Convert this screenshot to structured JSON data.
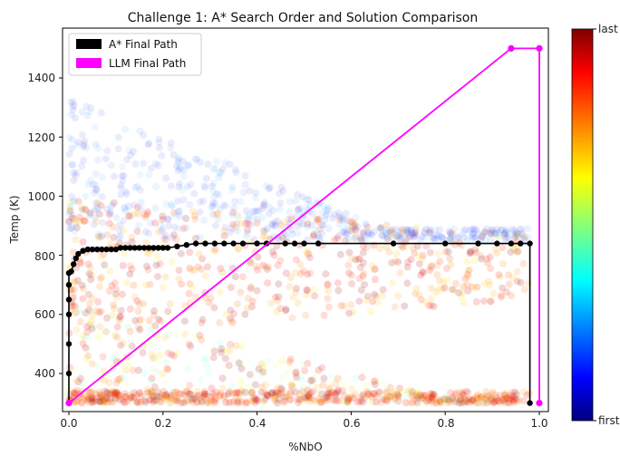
{
  "chart_data": {
    "type": "scatter",
    "title": "Challenge 1: A* Search Order and Solution Comparison",
    "xlabel": "%NbO",
    "ylabel": "Temp (K)",
    "xlim": [
      -0.01,
      1.01
    ],
    "ylim": [
      235,
      1570
    ],
    "xticks": [
      "0.0",
      "0.2",
      "0.4",
      "0.6",
      "0.8",
      "1.0"
    ],
    "yticks": [
      "400",
      "600",
      "800",
      "1000",
      "1200",
      "1400"
    ],
    "legend": {
      "placement": "top-left",
      "entries": [
        {
          "label": "A* Final Path",
          "color": "#000000"
        },
        {
          "label": "LLM Final Path",
          "color": "#ff00ff"
        }
      ]
    },
    "colorbar": {
      "top_label": "last",
      "bottom_label": "first",
      "colormap": "jet"
    },
    "series": [
      {
        "name": "A* Final Path",
        "color": "#000000",
        "x": [
          0.0,
          0.0,
          0.0,
          0.0,
          0.0,
          0.0,
          0.0,
          0.005,
          0.01,
          0.015,
          0.02,
          0.03,
          0.04,
          0.05,
          0.06,
          0.07,
          0.08,
          0.09,
          0.1,
          0.11,
          0.12,
          0.13,
          0.14,
          0.15,
          0.16,
          0.17,
          0.18,
          0.19,
          0.2,
          0.21,
          0.23,
          0.25,
          0.27,
          0.29,
          0.31,
          0.33,
          0.35,
          0.37,
          0.4,
          0.42,
          0.46,
          0.48,
          0.5,
          0.53,
          0.69,
          0.8,
          0.87,
          0.91,
          0.94,
          0.96,
          0.98,
          0.98
        ],
        "y": [
          300,
          400,
          500,
          600,
          650,
          700,
          740,
          745,
          770,
          790,
          805,
          815,
          820,
          820,
          820,
          820,
          820,
          820,
          820,
          825,
          825,
          825,
          825,
          825,
          825,
          825,
          825,
          825,
          825,
          825,
          830,
          835,
          840,
          840,
          840,
          840,
          840,
          840,
          840,
          840,
          840,
          840,
          840,
          840,
          840,
          840,
          840,
          840,
          840,
          840,
          840,
          300
        ]
      },
      {
        "name": "LLM Final Path",
        "color": "#ff00ff",
        "x": [
          0.0,
          0.94,
          1.0,
          1.0
        ],
        "y": [
          300,
          1500,
          1500,
          300
        ]
      }
    ]
  }
}
